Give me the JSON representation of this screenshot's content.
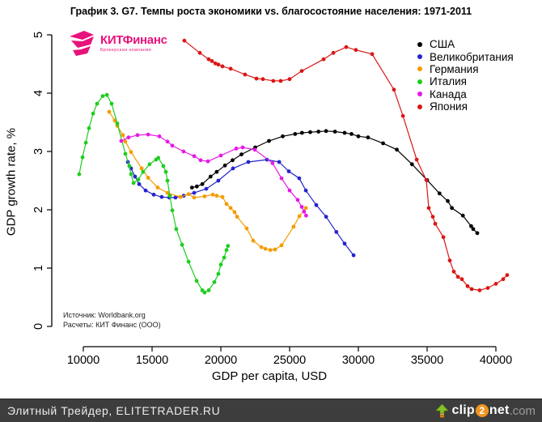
{
  "title": "График 3. G7. Темпы роста экономики vs. благосостояние населения: 1971-2011",
  "logo": {
    "name": "КИТФинанс",
    "subtitle": "Брокерская компания"
  },
  "source_lines": {
    "line1": "Источник: Worldbank.org",
    "line2": "Расчеты: КИТ Финанс (ООО)"
  },
  "footer": {
    "left_text": "Элитный Трейдер, ELITETRADER.RU",
    "clip": "clip",
    "two": "2",
    "net": "net",
    "com": ".com"
  },
  "chart_data": {
    "type": "line",
    "title": "График 3. G7. Темпы роста экономики vs. благосостояние населения: 1971-2011",
    "xlabel": "GDP per capita, USD",
    "ylabel": "GDP growth rate, %",
    "xlim": [
      9000,
      41000
    ],
    "ylim": [
      0,
      5
    ],
    "x_ticks": [
      10000,
      15000,
      20000,
      25000,
      30000,
      35000,
      40000
    ],
    "y_ticks": [
      0,
      1,
      2,
      3,
      4,
      5
    ],
    "grid": false,
    "legend_position": "top-right",
    "series": [
      {
        "name": "США",
        "color": "#000000",
        "points": [
          [
            17900,
            2.38
          ],
          [
            18250,
            2.4
          ],
          [
            18650,
            2.44
          ],
          [
            19250,
            2.57
          ],
          [
            19700,
            2.65
          ],
          [
            20300,
            2.76
          ],
          [
            20850,
            2.85
          ],
          [
            21500,
            2.95
          ],
          [
            22500,
            3.07
          ],
          [
            23500,
            3.18
          ],
          [
            24500,
            3.26
          ],
          [
            25400,
            3.3
          ],
          [
            25900,
            3.32
          ],
          [
            26500,
            3.33
          ],
          [
            27100,
            3.34
          ],
          [
            27650,
            3.35
          ],
          [
            28300,
            3.34
          ],
          [
            29000,
            3.32
          ],
          [
            29500,
            3.3
          ],
          [
            30000,
            3.26
          ],
          [
            30700,
            3.24
          ],
          [
            31800,
            3.14
          ],
          [
            32800,
            3.03
          ],
          [
            33900,
            2.78
          ],
          [
            35000,
            2.51
          ],
          [
            35900,
            2.28
          ],
          [
            36500,
            2.15
          ],
          [
            36800,
            2.03
          ],
          [
            37600,
            1.9
          ],
          [
            38200,
            1.72
          ],
          [
            38350,
            1.67
          ],
          [
            38650,
            1.6
          ]
        ]
      },
      {
        "name": "Великобритания",
        "color": "#2424ce",
        "points": [
          [
            13240,
            2.82
          ],
          [
            13470,
            2.71
          ],
          [
            13760,
            2.57
          ],
          [
            14060,
            2.44
          ],
          [
            14530,
            2.33
          ],
          [
            15120,
            2.26
          ],
          [
            15700,
            2.22
          ],
          [
            16250,
            2.21
          ],
          [
            16700,
            2.21
          ],
          [
            17300,
            2.24
          ],
          [
            18060,
            2.29
          ],
          [
            18940,
            2.36
          ],
          [
            19820,
            2.5
          ],
          [
            20880,
            2.71
          ],
          [
            22000,
            2.82
          ],
          [
            23350,
            2.86
          ],
          [
            24240,
            2.82
          ],
          [
            24940,
            2.66
          ],
          [
            25700,
            2.54
          ],
          [
            26180,
            2.33
          ],
          [
            26940,
            2.08
          ],
          [
            27650,
            1.88
          ],
          [
            28400,
            1.62
          ],
          [
            29000,
            1.42
          ],
          [
            29650,
            1.22
          ]
        ]
      },
      {
        "name": "Германия",
        "color": "#f59b00",
        "points": [
          [
            11880,
            3.68
          ],
          [
            12290,
            3.53
          ],
          [
            12470,
            3.44
          ],
          [
            12880,
            3.28
          ],
          [
            13060,
            3.17
          ],
          [
            13470,
            2.99
          ],
          [
            14240,
            2.71
          ],
          [
            14710,
            2.55
          ],
          [
            15410,
            2.38
          ],
          [
            16120,
            2.29
          ],
          [
            17060,
            2.22
          ],
          [
            17650,
            2.27
          ],
          [
            18060,
            2.21
          ],
          [
            18820,
            2.23
          ],
          [
            19410,
            2.26
          ],
          [
            19700,
            2.24
          ],
          [
            20120,
            2.22
          ],
          [
            20410,
            2.1
          ],
          [
            20710,
            2.03
          ],
          [
            21000,
            1.96
          ],
          [
            21180,
            1.88
          ],
          [
            21880,
            1.68
          ],
          [
            22350,
            1.47
          ],
          [
            22940,
            1.36
          ],
          [
            23240,
            1.33
          ],
          [
            23600,
            1.31
          ],
          [
            23940,
            1.32
          ],
          [
            24410,
            1.39
          ],
          [
            25290,
            1.71
          ],
          [
            25710,
            1.89
          ],
          [
            26180,
            2.03
          ]
        ]
      },
      {
        "name": "Италия",
        "color": "#1ece1e",
        "points": [
          [
            9700,
            2.61
          ],
          [
            9940,
            2.9
          ],
          [
            10180,
            3.15
          ],
          [
            10410,
            3.4
          ],
          [
            10710,
            3.65
          ],
          [
            11000,
            3.82
          ],
          [
            11410,
            3.95
          ],
          [
            11710,
            3.97
          ],
          [
            12060,
            3.82
          ],
          [
            12470,
            3.48
          ],
          [
            13060,
            2.96
          ],
          [
            13350,
            2.75
          ],
          [
            13470,
            2.61
          ],
          [
            13650,
            2.46
          ],
          [
            14000,
            2.52
          ],
          [
            14350,
            2.65
          ],
          [
            14820,
            2.78
          ],
          [
            15290,
            2.86
          ],
          [
            15450,
            2.89
          ],
          [
            15820,
            2.75
          ],
          [
            16000,
            2.65
          ],
          [
            16120,
            2.5
          ],
          [
            16290,
            2.24
          ],
          [
            16470,
            1.99
          ],
          [
            16760,
            1.67
          ],
          [
            17180,
            1.4
          ],
          [
            17650,
            1.11
          ],
          [
            18240,
            0.78
          ],
          [
            18650,
            0.62
          ],
          [
            18820,
            0.58
          ],
          [
            19120,
            0.62
          ],
          [
            19530,
            0.76
          ],
          [
            19820,
            0.9
          ],
          [
            20000,
            1.06
          ],
          [
            20240,
            1.18
          ],
          [
            20410,
            1.31
          ],
          [
            20520,
            1.38
          ]
        ]
      },
      {
        "name": "Канада",
        "color": "#e619e6",
        "points": [
          [
            12760,
            3.18
          ],
          [
            13290,
            3.24
          ],
          [
            13940,
            3.28
          ],
          [
            14710,
            3.29
          ],
          [
            15530,
            3.26
          ],
          [
            16120,
            3.17
          ],
          [
            16470,
            3.1
          ],
          [
            17290,
            3.0
          ],
          [
            18060,
            2.92
          ],
          [
            18530,
            2.85
          ],
          [
            19060,
            2.83
          ],
          [
            20000,
            2.93
          ],
          [
            21120,
            3.05
          ],
          [
            21590,
            3.07
          ],
          [
            22470,
            3.03
          ],
          [
            23760,
            2.8
          ],
          [
            24410,
            2.54
          ],
          [
            25000,
            2.33
          ],
          [
            25590,
            2.17
          ],
          [
            25880,
            2.05
          ],
          [
            26050,
            1.97
          ],
          [
            26200,
            1.9
          ]
        ]
      },
      {
        "name": "Япония",
        "color": "#db1616",
        "points": [
          [
            17350,
            4.9
          ],
          [
            18470,
            4.69
          ],
          [
            19120,
            4.58
          ],
          [
            19350,
            4.55
          ],
          [
            19600,
            4.51
          ],
          [
            19820,
            4.49
          ],
          [
            20120,
            4.46
          ],
          [
            20710,
            4.42
          ],
          [
            21760,
            4.32
          ],
          [
            22590,
            4.25
          ],
          [
            23060,
            4.24
          ],
          [
            23820,
            4.21
          ],
          [
            24350,
            4.21
          ],
          [
            25000,
            4.24
          ],
          [
            25880,
            4.38
          ],
          [
            27470,
            4.58
          ],
          [
            28180,
            4.69
          ],
          [
            29120,
            4.79
          ],
          [
            29820,
            4.74
          ],
          [
            31000,
            4.67
          ],
          [
            32590,
            4.06
          ],
          [
            33240,
            3.61
          ],
          [
            34240,
            2.86
          ],
          [
            34940,
            2.51
          ],
          [
            35120,
            2.03
          ],
          [
            35410,
            1.88
          ],
          [
            35590,
            1.76
          ],
          [
            36180,
            1.53
          ],
          [
            36650,
            1.13
          ],
          [
            36940,
            0.94
          ],
          [
            37240,
            0.85
          ],
          [
            37530,
            0.81
          ],
          [
            37940,
            0.69
          ],
          [
            38240,
            0.64
          ],
          [
            38820,
            0.62
          ],
          [
            39410,
            0.66
          ],
          [
            40000,
            0.73
          ],
          [
            40530,
            0.81
          ],
          [
            40820,
            0.88
          ]
        ]
      }
    ]
  }
}
